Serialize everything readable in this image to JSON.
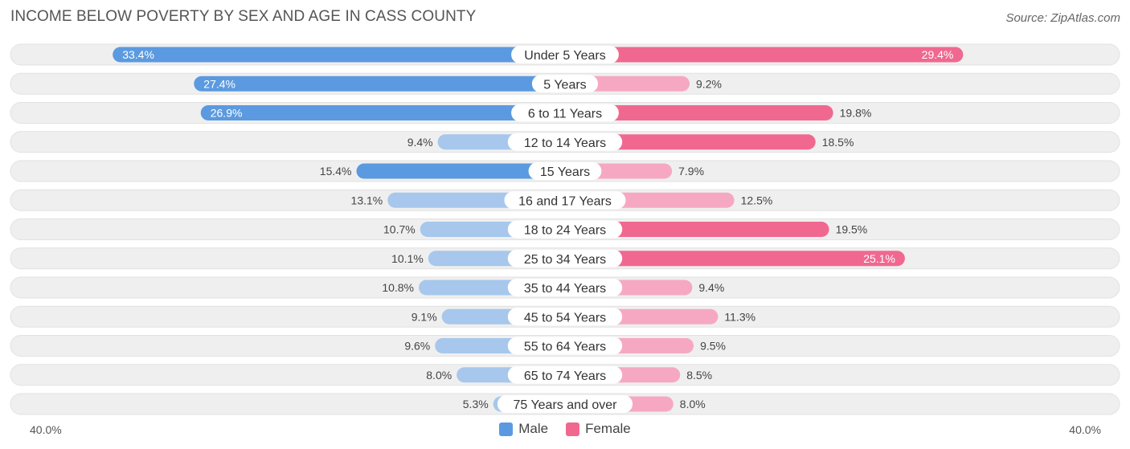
{
  "title": "INCOME BELOW POVERTY BY SEX AND AGE IN CASS COUNTY",
  "source": "Source: ZipAtlas.com",
  "colors": {
    "male_strong": "#5b9ae0",
    "male_light": "#a7c7ec",
    "female_strong": "#f06890",
    "female_light": "#f6a8c2",
    "track": "#efefef"
  },
  "chart_data": {
    "type": "bar",
    "orientation": "horizontal-diverging",
    "title": "INCOME BELOW POVERTY BY SEX AND AGE IN CASS COUNTY",
    "categories": [
      "Under 5 Years",
      "5 Years",
      "6 to 11 Years",
      "12 to 14 Years",
      "15 Years",
      "16 and 17 Years",
      "18 to 24 Years",
      "25 to 34 Years",
      "35 to 44 Years",
      "45 to 54 Years",
      "55 to 64 Years",
      "65 to 74 Years",
      "75 Years and over"
    ],
    "series": [
      {
        "name": "Male",
        "values": [
          33.4,
          27.4,
          26.9,
          9.4,
          15.4,
          13.1,
          10.7,
          10.1,
          10.8,
          9.1,
          9.6,
          8.0,
          5.3
        ]
      },
      {
        "name": "Female",
        "values": [
          29.4,
          9.2,
          19.8,
          18.5,
          7.9,
          12.5,
          19.5,
          25.1,
          9.4,
          11.3,
          9.5,
          8.5,
          8.0
        ]
      }
    ],
    "value_labels": {
      "male": [
        "33.4%",
        "27.4%",
        "26.9%",
        "9.4%",
        "15.4%",
        "13.1%",
        "10.7%",
        "10.1%",
        "10.8%",
        "9.1%",
        "9.6%",
        "8.0%",
        "5.3%"
      ],
      "female": [
        "29.4%",
        "9.2%",
        "19.8%",
        "18.5%",
        "7.9%",
        "12.5%",
        "19.5%",
        "25.1%",
        "9.4%",
        "11.3%",
        "9.5%",
        "8.5%",
        "8.0%"
      ]
    },
    "axis": {
      "min_label": "40.0%",
      "max_label": "40.0%",
      "range": [
        0,
        40
      ]
    },
    "legend": [
      "Male",
      "Female"
    ]
  }
}
